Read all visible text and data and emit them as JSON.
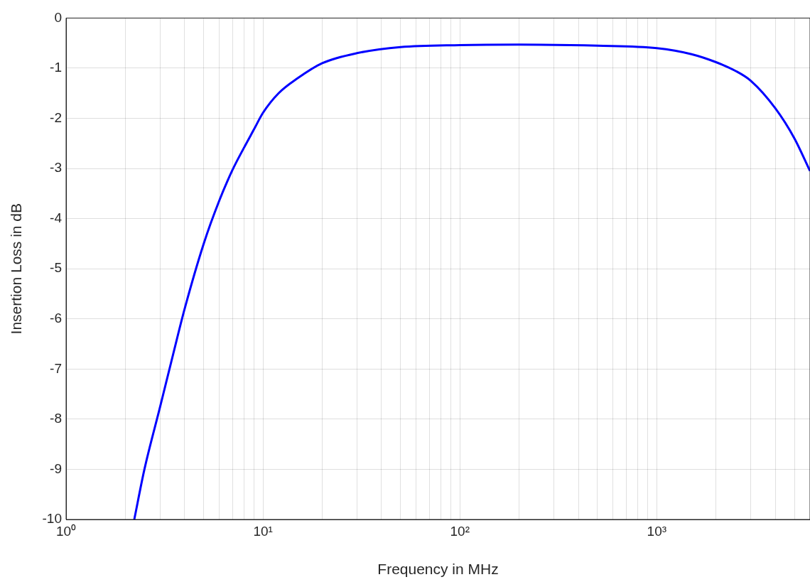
{
  "chart_data": {
    "type": "line",
    "xlabel": "Frequency in MHz",
    "ylabel": "Insertion Loss in dB",
    "log": "x",
    "grid": true,
    "marker": "none",
    "line_style": "solid",
    "x": [
      2.22,
      2.5,
      3,
      3.5,
      4,
      5,
      6,
      7,
      8,
      9,
      10,
      12,
      15,
      20,
      30,
      50,
      100,
      200,
      500,
      1000,
      1500,
      2000,
      2500,
      3000,
      4000,
      5000,
      6000
    ],
    "series": [
      {
        "color": "#0000ff",
        "values": [
          -10,
          -9,
          -7.76,
          -6.7,
          -5.8,
          -4.5,
          -3.64,
          -3.03,
          -2.59,
          -2.22,
          -1.89,
          -1.5,
          -1.2,
          -0.9,
          -0.7,
          -0.58,
          -0.54,
          -0.53,
          -0.55,
          -0.6,
          -0.72,
          -0.88,
          -1.05,
          -1.25,
          -1.8,
          -2.4,
          -3.05
        ]
      }
    ],
    "xlim": [
      1,
      6000
    ],
    "xticks": [
      {
        "value": 1,
        "label": "10⁰"
      },
      {
        "value": 2,
        "label": null
      },
      {
        "value": 3,
        "label": null
      },
      {
        "value": 4,
        "label": null
      },
      {
        "value": 5,
        "label": null
      },
      {
        "value": 6,
        "label": null
      },
      {
        "value": 7,
        "label": null
      },
      {
        "value": 8,
        "label": null
      },
      {
        "value": 9,
        "label": null
      },
      {
        "value": 10,
        "label": "10¹"
      },
      {
        "value": 20,
        "label": null
      },
      {
        "value": 30,
        "label": null
      },
      {
        "value": 40,
        "label": null
      },
      {
        "value": 50,
        "label": null
      },
      {
        "value": 60,
        "label": null
      },
      {
        "value": 70,
        "label": null
      },
      {
        "value": 80,
        "label": null
      },
      {
        "value": 90,
        "label": null
      },
      {
        "value": 100,
        "label": "10²"
      },
      {
        "value": 200,
        "label": null
      },
      {
        "value": 300,
        "label": null
      },
      {
        "value": 400,
        "label": null
      },
      {
        "value": 500,
        "label": null
      },
      {
        "value": 600,
        "label": null
      },
      {
        "value": 700,
        "label": null
      },
      {
        "value": 800,
        "label": null
      },
      {
        "value": 900,
        "label": null
      },
      {
        "value": 1000,
        "label": "10³"
      },
      {
        "value": 2000,
        "label": null
      },
      {
        "value": 3000,
        "label": null
      },
      {
        "value": 4000,
        "label": null
      },
      {
        "value": 5000,
        "label": null
      }
    ],
    "ylim": [
      -10,
      0
    ],
    "yticks": [
      -10,
      -9,
      -8,
      -7,
      -6,
      -5,
      -4,
      -3,
      -2,
      -1,
      0
    ]
  }
}
